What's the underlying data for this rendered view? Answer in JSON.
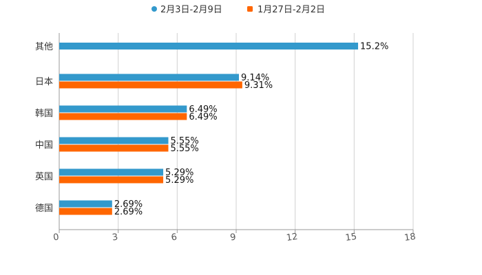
{
  "chart_data": {
    "type": "bar",
    "orientation": "horizontal",
    "categories": [
      "其他",
      "日本",
      "韩国",
      "中国",
      "英国",
      "德国"
    ],
    "series": [
      {
        "name": "2月3日-2月9日",
        "color": "#3399cc",
        "values": [
          15.2,
          9.14,
          6.49,
          5.55,
          5.29,
          2.69
        ],
        "labels": [
          "15.2%",
          "9.14%",
          "6.49%",
          "5.55%",
          "5.29%",
          "2.69%"
        ]
      },
      {
        "name": "1月27日-2月2日",
        "color": "#ff6600",
        "values": [
          null,
          9.31,
          6.49,
          5.55,
          5.29,
          2.69
        ],
        "labels": [
          "",
          "9.31%",
          "6.49%",
          "5.55%",
          "5.29%",
          "2.69%"
        ]
      }
    ],
    "xlim": [
      0,
      18
    ],
    "xticks": [
      "0",
      "3",
      "6",
      "9",
      "12",
      "15",
      "18"
    ],
    "title": "",
    "xlabel": "",
    "ylabel": "",
    "grid": true,
    "legend_position": "top-center"
  }
}
